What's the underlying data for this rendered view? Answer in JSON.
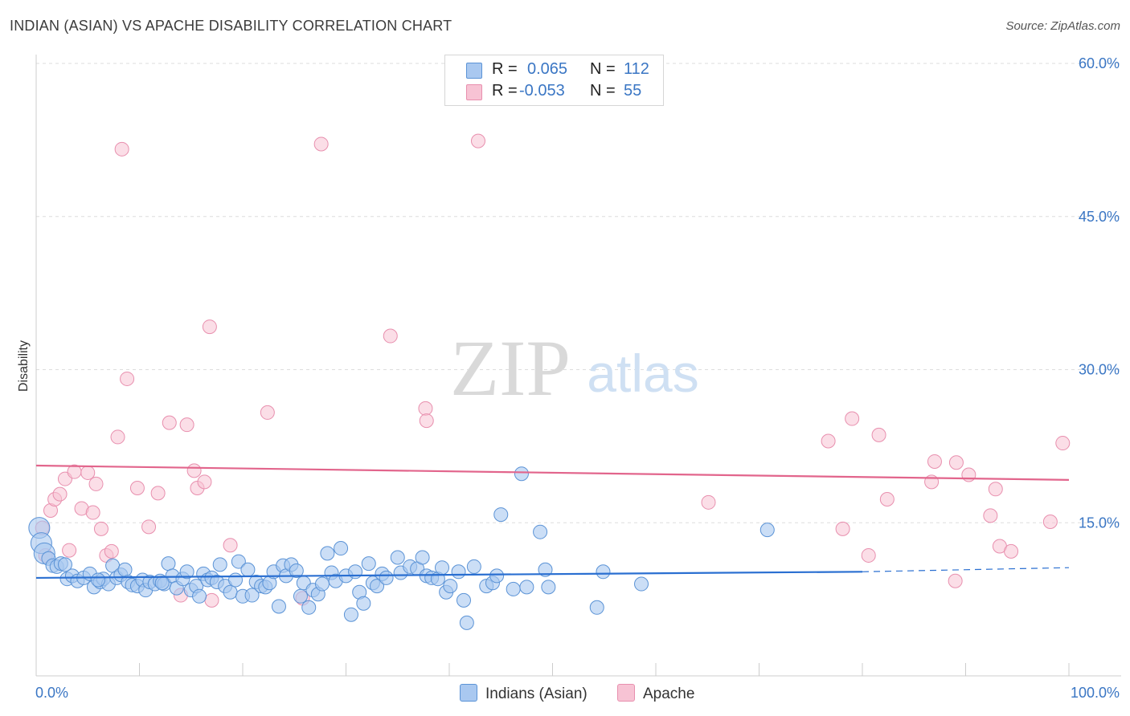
{
  "title": "INDIAN (ASIAN) VS APACHE DISABILITY CORRELATION CHART",
  "source": "Source: ZipAtlas.com",
  "watermark": {
    "zip": "ZIP",
    "atlas": "atlas"
  },
  "legend_top": {
    "rows": [
      {
        "r_label": "R =",
        "r_value": "0.065",
        "n_label": "N =",
        "n_value": "112"
      },
      {
        "r_label": "R =",
        "r_value": "-0.053",
        "n_label": "N =",
        "n_value": "55"
      }
    ]
  },
  "legend_bottom": [
    "Indians (Asian)",
    "Apache"
  ],
  "colors": {
    "blue_fill": "#a9c8f0",
    "blue_stroke": "#5b93d6",
    "blue_line": "#2a6fd1",
    "pink_fill": "#f7c3d4",
    "pink_stroke": "#e88fae",
    "pink_line": "#e2658c",
    "axis_text": "#3a76c4",
    "grid": "#dddddd"
  },
  "chart_data": {
    "type": "scatter",
    "title": "INDIAN (ASIAN) VS APACHE DISABILITY CORRELATION CHART",
    "xlabel": "",
    "ylabel": "Disability",
    "xlim": [
      0,
      100
    ],
    "ylim": [
      0,
      60
    ],
    "x_tick_labels": [
      "0.0%",
      "100.0%"
    ],
    "y_ticks": [
      15,
      30,
      45,
      60
    ],
    "y_tick_labels": [
      "15.0%",
      "30.0%",
      "45.0%",
      "60.0%"
    ],
    "series": [
      {
        "name": "Indians (Asian)",
        "r": 0.065,
        "n": 112,
        "trend": {
          "x0": 0,
          "y0": 9.6,
          "x1": 80,
          "y1": 10.2,
          "dash_to_x": 100,
          "dash_to_y": 10.6
        },
        "points": [
          [
            0.3,
            14.5
          ],
          [
            0.5,
            13.0
          ],
          [
            0.8,
            12.0
          ],
          [
            1.2,
            11.5
          ],
          [
            1.6,
            10.8
          ],
          [
            2.0,
            10.7
          ],
          [
            2.4,
            11.0
          ],
          [
            3.0,
            9.5
          ],
          [
            3.5,
            9.8
          ],
          [
            4.0,
            9.3
          ],
          [
            4.6,
            9.6
          ],
          [
            5.2,
            10.0
          ],
          [
            5.6,
            8.7
          ],
          [
            6.2,
            9.2
          ],
          [
            6.5,
            9.5
          ],
          [
            7.0,
            9.0
          ],
          [
            7.4,
            10.8
          ],
          [
            7.8,
            9.6
          ],
          [
            8.2,
            9.9
          ],
          [
            8.6,
            10.4
          ],
          [
            8.9,
            9.2
          ],
          [
            9.3,
            8.9
          ],
          [
            9.8,
            8.8
          ],
          [
            10.3,
            9.4
          ],
          [
            10.6,
            8.4
          ],
          [
            11.0,
            9.2
          ],
          [
            11.5,
            9.0
          ],
          [
            12.0,
            9.3
          ],
          [
            12.4,
            9.0
          ],
          [
            12.8,
            11.0
          ],
          [
            13.2,
            9.8
          ],
          [
            13.6,
            8.6
          ],
          [
            14.2,
            9.5
          ],
          [
            14.6,
            10.2
          ],
          [
            15.0,
            8.4
          ],
          [
            15.5,
            8.8
          ],
          [
            15.8,
            7.8
          ],
          [
            16.2,
            10.0
          ],
          [
            16.6,
            9.4
          ],
          [
            17.0,
            9.6
          ],
          [
            17.5,
            9.2
          ],
          [
            17.8,
            10.9
          ],
          [
            18.3,
            8.8
          ],
          [
            18.8,
            8.2
          ],
          [
            19.3,
            9.4
          ],
          [
            19.6,
            11.2
          ],
          [
            20.0,
            7.8
          ],
          [
            20.5,
            10.4
          ],
          [
            20.9,
            7.9
          ],
          [
            21.3,
            9.2
          ],
          [
            21.8,
            8.8
          ],
          [
            22.2,
            8.7
          ],
          [
            22.6,
            9.1
          ],
          [
            23.0,
            10.2
          ],
          [
            23.5,
            6.8
          ],
          [
            23.9,
            10.8
          ],
          [
            24.2,
            9.8
          ],
          [
            24.7,
            10.9
          ],
          [
            25.2,
            10.3
          ],
          [
            25.6,
            7.8
          ],
          [
            25.9,
            9.1
          ],
          [
            26.4,
            6.7
          ],
          [
            26.8,
            8.4
          ],
          [
            27.3,
            8.0
          ],
          [
            27.7,
            9.0
          ],
          [
            28.2,
            12.0
          ],
          [
            28.6,
            10.1
          ],
          [
            29.0,
            9.3
          ],
          [
            29.5,
            12.5
          ],
          [
            30.0,
            9.8
          ],
          [
            30.5,
            6.0
          ],
          [
            30.9,
            10.2
          ],
          [
            31.3,
            8.2
          ],
          [
            31.7,
            7.1
          ],
          [
            32.2,
            11.0
          ],
          [
            32.6,
            9.1
          ],
          [
            33.0,
            8.8
          ],
          [
            33.5,
            10.0
          ],
          [
            33.9,
            9.6
          ],
          [
            35.0,
            11.6
          ],
          [
            35.3,
            10.1
          ],
          [
            36.2,
            10.7
          ],
          [
            36.9,
            10.5
          ],
          [
            37.4,
            11.6
          ],
          [
            37.8,
            9.8
          ],
          [
            38.3,
            9.6
          ],
          [
            38.9,
            9.5
          ],
          [
            39.3,
            10.6
          ],
          [
            39.7,
            8.2
          ],
          [
            40.1,
            8.8
          ],
          [
            40.9,
            10.2
          ],
          [
            41.4,
            7.4
          ],
          [
            41.7,
            5.2
          ],
          [
            42.4,
            10.7
          ],
          [
            43.6,
            8.8
          ],
          [
            44.2,
            9.1
          ],
          [
            44.6,
            9.8
          ],
          [
            45.0,
            15.8
          ],
          [
            46.2,
            8.5
          ],
          [
            47.0,
            19.8
          ],
          [
            47.5,
            8.7
          ],
          [
            48.8,
            14.1
          ],
          [
            49.3,
            10.4
          ],
          [
            49.6,
            8.7
          ],
          [
            54.3,
            6.7
          ],
          [
            54.9,
            10.2
          ],
          [
            58.6,
            9.0
          ],
          [
            70.8,
            14.3
          ],
          [
            2.8,
            10.9
          ],
          [
            6.0,
            9.4
          ],
          [
            12.2,
            9.1
          ]
        ]
      },
      {
        "name": "Apache",
        "r": -0.053,
        "n": 55,
        "trend": {
          "x0": 0,
          "y0": 20.6,
          "x1": 100,
          "y1": 19.2
        },
        "points": [
          [
            0.6,
            14.5
          ],
          [
            0.9,
            11.8
          ],
          [
            1.4,
            16.2
          ],
          [
            1.8,
            17.3
          ],
          [
            2.3,
            17.8
          ],
          [
            2.8,
            19.3
          ],
          [
            3.2,
            12.3
          ],
          [
            3.7,
            20.0
          ],
          [
            4.4,
            16.4
          ],
          [
            5.0,
            19.9
          ],
          [
            5.5,
            16.0
          ],
          [
            5.8,
            18.8
          ],
          [
            6.3,
            14.4
          ],
          [
            6.8,
            11.8
          ],
          [
            7.3,
            12.2
          ],
          [
            7.9,
            23.4
          ],
          [
            8.3,
            51.6
          ],
          [
            8.8,
            29.1
          ],
          [
            9.8,
            18.4
          ],
          [
            10.9,
            14.6
          ],
          [
            11.8,
            17.9
          ],
          [
            12.9,
            24.8
          ],
          [
            14.0,
            7.9
          ],
          [
            14.6,
            24.6
          ],
          [
            15.3,
            20.1
          ],
          [
            15.6,
            18.4
          ],
          [
            16.3,
            19.0
          ],
          [
            16.8,
            34.2
          ],
          [
            17.0,
            7.4
          ],
          [
            18.8,
            12.8
          ],
          [
            22.4,
            25.8
          ],
          [
            25.8,
            7.6
          ],
          [
            27.6,
            52.1
          ],
          [
            34.3,
            33.3
          ],
          [
            37.7,
            26.2
          ],
          [
            37.8,
            25.0
          ],
          [
            42.8,
            52.4
          ],
          [
            65.1,
            17.0
          ],
          [
            76.7,
            23.0
          ],
          [
            78.1,
            14.4
          ],
          [
            79.0,
            25.2
          ],
          [
            80.6,
            11.8
          ],
          [
            81.6,
            23.6
          ],
          [
            82.4,
            17.3
          ],
          [
            86.7,
            19.0
          ],
          [
            87.0,
            21.0
          ],
          [
            89.0,
            9.3
          ],
          [
            89.1,
            20.9
          ],
          [
            90.3,
            19.7
          ],
          [
            92.4,
            15.7
          ],
          [
            92.9,
            18.3
          ],
          [
            93.3,
            12.7
          ],
          [
            94.4,
            12.2
          ],
          [
            98.2,
            15.1
          ],
          [
            99.4,
            22.8
          ]
        ]
      }
    ]
  }
}
